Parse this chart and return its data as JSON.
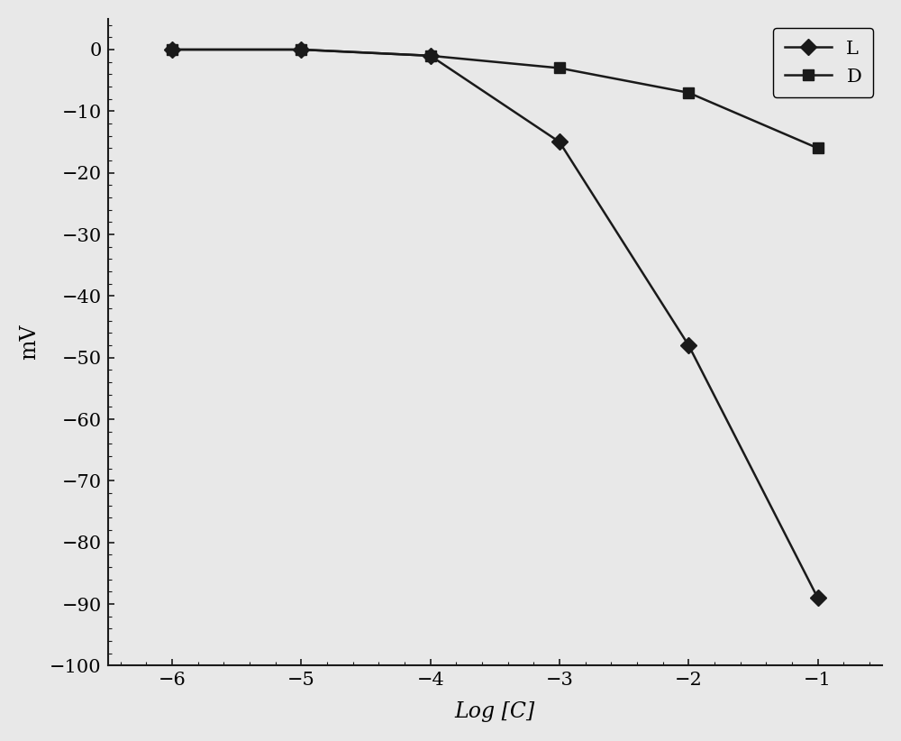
{
  "L_x": [
    -6,
    -5,
    -4,
    -3,
    -2,
    -1
  ],
  "L_y": [
    0,
    0,
    -1,
    -15,
    -48,
    -89
  ],
  "D_x": [
    -6,
    -5,
    -4,
    -3,
    -2,
    -1
  ],
  "D_y": [
    0,
    0,
    -1,
    -3,
    -7,
    -16
  ],
  "xlabel": "Log [C]",
  "ylabel": "mV",
  "xlim": [
    -6.5,
    -0.5
  ],
  "ylim": [
    -100,
    5
  ],
  "yticks": [
    0,
    -10,
    -20,
    -30,
    -40,
    -50,
    -60,
    -70,
    -80,
    -90,
    -100
  ],
  "xticks": [
    -6,
    -5,
    -4,
    -3,
    -2,
    -1
  ],
  "xtick_labels": [
    "−6",
    "−5",
    "−4",
    "−3",
    "−2",
    "−1"
  ],
  "ytick_labels": [
    "0",
    "−10",
    "−20",
    "−30",
    "−40",
    "−50",
    "−60",
    "−70",
    "−80",
    "−90",
    "−100"
  ],
  "line_color": "#1a1a1a",
  "background_color": "#e8e8e8",
  "legend_L": "L",
  "legend_D": "D",
  "marker_L": "D",
  "marker_D": "s",
  "marker_size": 9,
  "line_width": 1.8
}
